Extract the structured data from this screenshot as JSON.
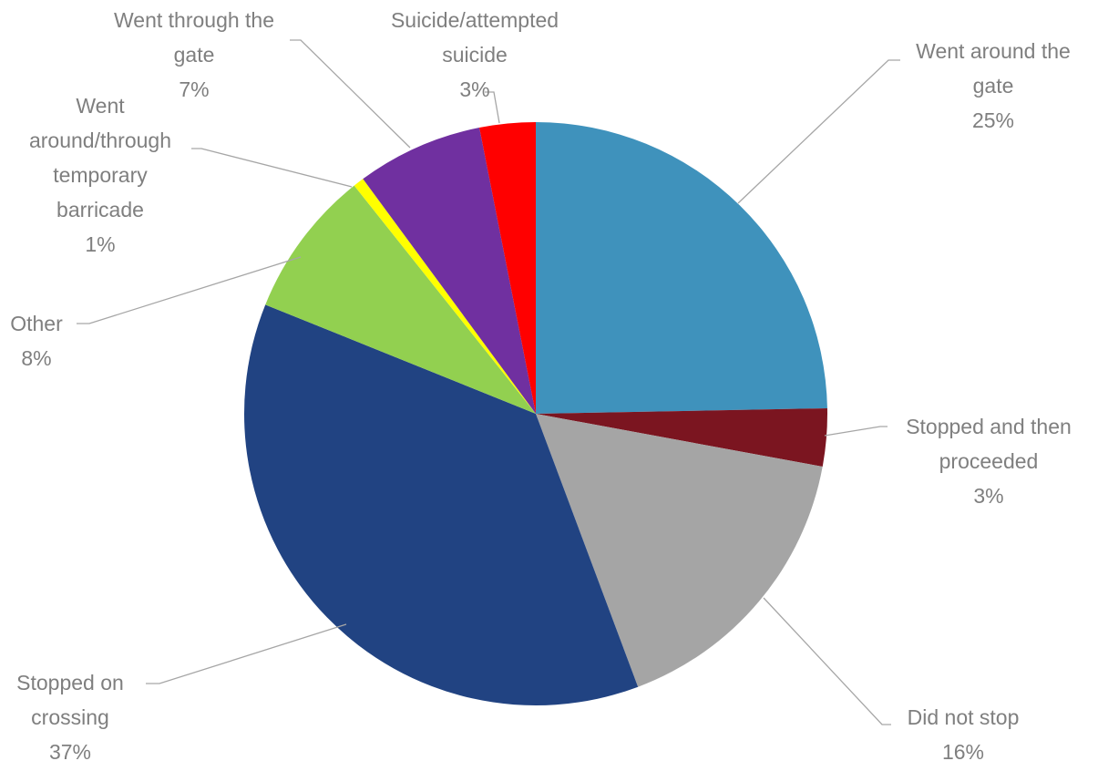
{
  "chart_data": {
    "type": "pie",
    "start_angle_deg": 0,
    "direction": "clockwise",
    "slices": [
      {
        "name": "Went around the gate",
        "label_lines": [
          "Went around the",
          "gate"
        ],
        "pct_label": "25%",
        "value": 24.7,
        "color": "#3f92bc"
      },
      {
        "name": "Stopped and then proceeded",
        "label_lines": [
          "Stopped and then",
          "proceeded"
        ],
        "pct_label": "3%",
        "value": 3.2,
        "color": "#7b1520"
      },
      {
        "name": "Did not stop",
        "label_lines": [
          "Did not stop"
        ],
        "pct_label": "16%",
        "value": 16.4,
        "color": "#a5a5a5"
      },
      {
        "name": "Stopped on crossing",
        "label_lines": [
          "Stopped on",
          "crossing"
        ],
        "pct_label": "37%",
        "value": 36.8,
        "color": "#214382"
      },
      {
        "name": "Other",
        "label_lines": [
          "Other"
        ],
        "pct_label": "8%",
        "value": 8.2,
        "color": "#92d050"
      },
      {
        "name": "Went around/through temporary barricade",
        "label_lines": [
          "Went",
          "around/through",
          "temporary",
          "barricade"
        ],
        "pct_label": "1%",
        "value": 0.6,
        "color": "#ffff00"
      },
      {
        "name": "Went through the gate",
        "label_lines": [
          "Went through the",
          "gate"
        ],
        "pct_label": "7%",
        "value": 7.0,
        "color": "#7030a0"
      },
      {
        "name": "Suicide/attempted suicide",
        "label_lines": [
          "Suicide/attempted",
          "suicide"
        ],
        "pct_label": "3%",
        "value": 3.1,
        "color": "#ff0000"
      }
    ],
    "title": "",
    "legend": "none"
  }
}
